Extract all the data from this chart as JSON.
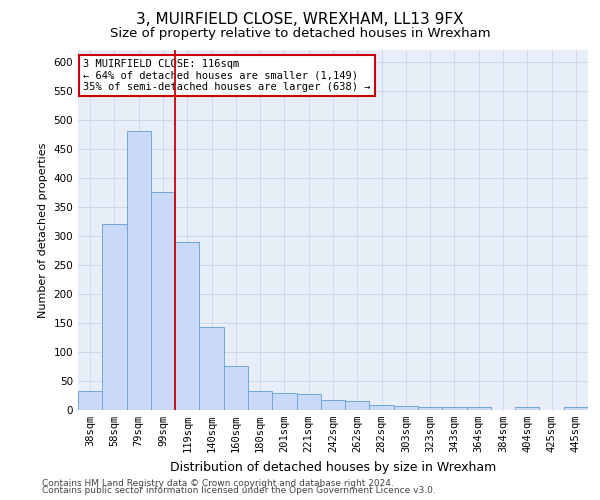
{
  "title1": "3, MUIRFIELD CLOSE, WREXHAM, LL13 9FX",
  "title2": "Size of property relative to detached houses in Wrexham",
  "xlabel": "Distribution of detached houses by size in Wrexham",
  "ylabel": "Number of detached properties",
  "categories": [
    "38sqm",
    "58sqm",
    "79sqm",
    "99sqm",
    "119sqm",
    "140sqm",
    "160sqm",
    "180sqm",
    "201sqm",
    "221sqm",
    "242sqm",
    "262sqm",
    "282sqm",
    "303sqm",
    "323sqm",
    "343sqm",
    "364sqm",
    "384sqm",
    "404sqm",
    "425sqm",
    "445sqm"
  ],
  "values": [
    32,
    320,
    480,
    375,
    290,
    143,
    76,
    32,
    30,
    28,
    17,
    16,
    9,
    7,
    5,
    5,
    5,
    0,
    5,
    0,
    6
  ],
  "bar_color": "#c9daf8",
  "bar_edge_color": "#6fa8dc",
  "vline_color": "#cc0000",
  "annotation_text": "3 MUIRFIELD CLOSE: 116sqm\n← 64% of detached houses are smaller (1,149)\n35% of semi-detached houses are larger (638) →",
  "annotation_box_color": "#ffffff",
  "annotation_box_edge": "#cc0000",
  "ylim": [
    0,
    620
  ],
  "yticks": [
    0,
    50,
    100,
    150,
    200,
    250,
    300,
    350,
    400,
    450,
    500,
    550,
    600
  ],
  "footer1": "Contains HM Land Registry data © Crown copyright and database right 2024.",
  "footer2": "Contains public sector information licensed under the Open Government Licence v3.0.",
  "background_color": "#ffffff",
  "plot_bg_color": "#e8eef8",
  "grid_color": "#c8d4e8",
  "title1_fontsize": 11,
  "title2_fontsize": 9.5,
  "xlabel_fontsize": 9,
  "ylabel_fontsize": 8,
  "tick_fontsize": 7.5,
  "footer_fontsize": 6.5,
  "annotation_fontsize": 7.5
}
